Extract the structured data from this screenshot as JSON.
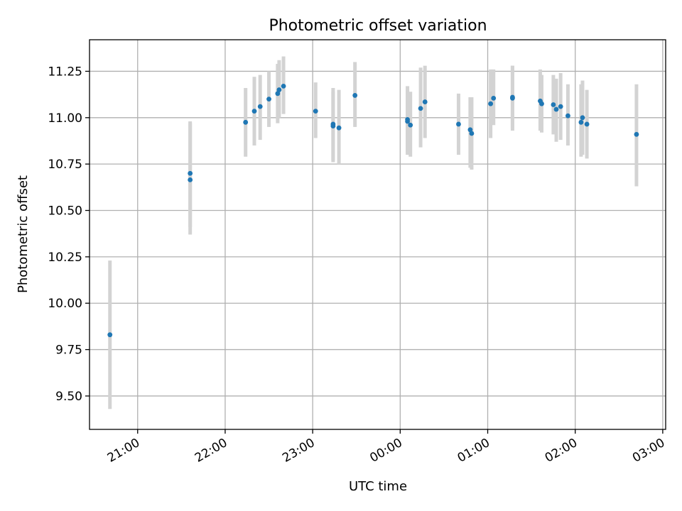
{
  "chart_data": {
    "type": "scatter",
    "title": "Photometric offset variation",
    "xlabel": "UTC time",
    "ylabel": "Photometric offset",
    "xlim": [
      "20:27",
      "03:02"
    ],
    "ylim": [
      9.32,
      11.42
    ],
    "grid": true,
    "x_ticks": [
      "21:00",
      "22:00",
      "23:00",
      "00:00",
      "01:00",
      "02:00",
      "03:00"
    ],
    "y_ticks": [
      "9.50",
      "9.75",
      "10.00",
      "10.25",
      "10.50",
      "10.75",
      "11.00",
      "11.25"
    ],
    "colors": {
      "points": "#1f77b4",
      "error_bars": "#d3d3d3"
    },
    "points": [
      {
        "t": "20:41",
        "y": 9.83,
        "lo": 9.43,
        "hi": 10.23
      },
      {
        "t": "21:36",
        "y": 10.665,
        "lo": 10.37,
        "hi": 10.97
      },
      {
        "t": "21:36",
        "y": 10.7,
        "lo": 10.41,
        "hi": 10.98
      },
      {
        "t": "22:14",
        "y": 10.975,
        "lo": 10.79,
        "hi": 11.16
      },
      {
        "t": "22:20",
        "y": 11.035,
        "lo": 10.85,
        "hi": 11.22
      },
      {
        "t": "22:24",
        "y": 11.06,
        "lo": 10.88,
        "hi": 11.23
      },
      {
        "t": "22:30",
        "y": 11.1,
        "lo": 10.95,
        "hi": 11.25
      },
      {
        "t": "22:36",
        "y": 11.13,
        "lo": 10.97,
        "hi": 11.29
      },
      {
        "t": "22:37",
        "y": 11.15,
        "lo": 11.0,
        "hi": 11.31
      },
      {
        "t": "22:40",
        "y": 11.17,
        "lo": 11.02,
        "hi": 11.33
      },
      {
        "t": "23:02",
        "y": 11.035,
        "lo": 10.89,
        "hi": 11.19
      },
      {
        "t": "23:14",
        "y": 10.965,
        "lo": 10.76,
        "hi": 11.16
      },
      {
        "t": "23:14",
        "y": 10.955,
        "lo": 10.77,
        "hi": 11.14
      },
      {
        "t": "23:18",
        "y": 10.945,
        "lo": 10.75,
        "hi": 11.15
      },
      {
        "t": "23:29",
        "y": 11.12,
        "lo": 10.95,
        "hi": 11.3
      },
      {
        "t": "00:05",
        "y": 10.98,
        "lo": 10.8,
        "hi": 11.17
      },
      {
        "t": "00:05",
        "y": 10.99,
        "lo": 10.81,
        "hi": 11.15
      },
      {
        "t": "00:07",
        "y": 10.96,
        "lo": 10.79,
        "hi": 11.14
      },
      {
        "t": "00:14",
        "y": 11.05,
        "lo": 10.84,
        "hi": 11.27
      },
      {
        "t": "00:17",
        "y": 11.085,
        "lo": 10.89,
        "hi": 11.28
      },
      {
        "t": "00:40",
        "y": 10.965,
        "lo": 10.8,
        "hi": 11.13
      },
      {
        "t": "00:48",
        "y": 10.935,
        "lo": 10.73,
        "hi": 11.11
      },
      {
        "t": "00:49",
        "y": 10.915,
        "lo": 10.72,
        "hi": 11.11
      },
      {
        "t": "01:02",
        "y": 11.075,
        "lo": 10.89,
        "hi": 11.26
      },
      {
        "t": "01:04",
        "y": 11.105,
        "lo": 10.96,
        "hi": 11.26
      },
      {
        "t": "01:17",
        "y": 11.105,
        "lo": 10.94,
        "hi": 11.28
      },
      {
        "t": "01:17",
        "y": 11.11,
        "lo": 10.93,
        "hi": 11.28
      },
      {
        "t": "01:36",
        "y": 11.09,
        "lo": 10.93,
        "hi": 11.26
      },
      {
        "t": "01:37",
        "y": 11.075,
        "lo": 10.92,
        "hi": 11.23
      },
      {
        "t": "01:45",
        "y": 11.07,
        "lo": 10.91,
        "hi": 11.23
      },
      {
        "t": "01:47",
        "y": 11.045,
        "lo": 10.87,
        "hi": 11.21
      },
      {
        "t": "01:50",
        "y": 11.06,
        "lo": 10.88,
        "hi": 11.24
      },
      {
        "t": "01:55",
        "y": 11.01,
        "lo": 10.85,
        "hi": 11.18
      },
      {
        "t": "02:04",
        "y": 10.975,
        "lo": 10.79,
        "hi": 11.18
      },
      {
        "t": "02:05",
        "y": 11.0,
        "lo": 10.8,
        "hi": 11.2
      },
      {
        "t": "02:08",
        "y": 10.965,
        "lo": 10.78,
        "hi": 11.15
      },
      {
        "t": "02:42",
        "y": 10.91,
        "lo": 10.63,
        "hi": 11.18
      }
    ]
  }
}
